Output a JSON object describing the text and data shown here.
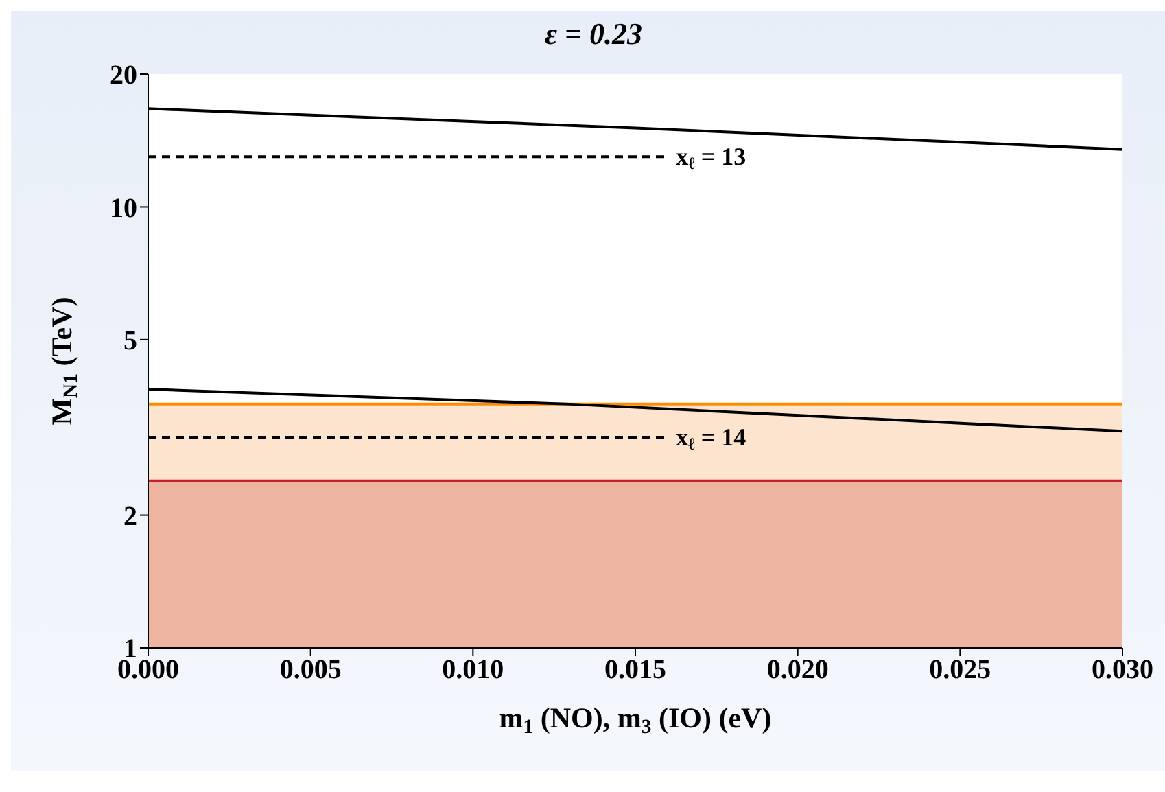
{
  "chart_data": {
    "type": "line",
    "title": "ε = 0.23",
    "xlabel": "m$_{1}$ (NO), m$_{3}$ (IO) (eV)",
    "ylabel": "M$_{N1}$ (TeV)",
    "xlim": [
      0,
      0.03
    ],
    "xticks": [
      {
        "value": 0,
        "label": "0.000"
      },
      {
        "value": 0.005,
        "label": "0.005"
      },
      {
        "value": 0.01,
        "label": "0.010"
      },
      {
        "value": 0.015,
        "label": "0.015"
      },
      {
        "value": 0.02,
        "label": "0.020"
      },
      {
        "value": 0.025,
        "label": "0.025"
      },
      {
        "value": 0.03,
        "label": "0.030"
      }
    ],
    "ylim": [
      1,
      20
    ],
    "yticks": [
      1,
      2,
      5,
      10,
      20
    ],
    "log": "y",
    "grid": false,
    "series": [
      {
        "color": "#000000",
        "line_style": "solid",
        "x": [
          0,
          0.015,
          0.03
        ],
        "values": [
          16.7,
          15.1,
          13.5
        ]
      },
      {
        "color": "#000000",
        "line_style": "solid",
        "x": [
          0,
          0.013,
          0.03
        ],
        "values": [
          3.86,
          3.57,
          3.1
        ]
      },
      {
        "color": "#000000",
        "line_style": "dashed",
        "x": [
          0,
          0.016
        ],
        "values": [
          13,
          13
        ]
      },
      {
        "color": "#000000",
        "line_style": "dashed",
        "x": [
          0,
          0.016
        ],
        "values": [
          3,
          3
        ]
      }
    ],
    "bands": [
      {
        "axis": "y",
        "from": 1,
        "to": 3.57,
        "color": "#fde4cf"
      },
      {
        "axis": "y",
        "from": 1,
        "to": 2.39,
        "color": "#ecb4a1"
      }
    ],
    "ref_lines": [
      {
        "axis": "y",
        "value": 3.57,
        "color": "#ff8c00"
      },
      {
        "axis": "y",
        "value": 2.39,
        "color": "#c8202a"
      }
    ],
    "annotations": [
      {
        "text": "x$_{ℓ}$ = 13",
        "x": 0.016,
        "y": 13
      },
      {
        "text": "x$_{ℓ}$ = 14",
        "x": 0.016,
        "y": 3
      }
    ]
  }
}
